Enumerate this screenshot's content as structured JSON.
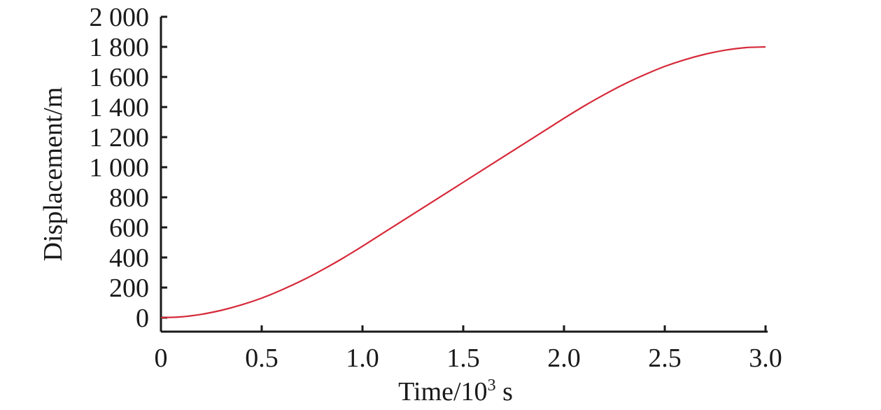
{
  "chart_data": {
    "type": "line",
    "title": "",
    "xlabel": "Time/10",
    "xlabel_sup": "3",
    "xlabel_unit": " s",
    "ylabel": "Displacement/m",
    "xlim": [
      0,
      3.0
    ],
    "ylim": [
      -40,
      2000
    ],
    "x_ticks": [
      "0",
      "0.5",
      "1.0",
      "1.5",
      "2.0",
      "2.5",
      "3.0"
    ],
    "x_tick_values": [
      0,
      0.5,
      1.0,
      1.5,
      2.0,
      2.5,
      3.0
    ],
    "y_ticks": [
      "0",
      "200",
      "400",
      "600",
      "800",
      "1 000",
      "1 200",
      "1 400",
      "1 600",
      "1 800",
      "2 000"
    ],
    "y_tick_values": [
      0,
      200,
      400,
      600,
      800,
      1000,
      1200,
      1400,
      1600,
      1800,
      2000
    ],
    "grid": false,
    "legend": "none",
    "series": [
      {
        "color": "#d62a3a",
        "x": [
          0,
          0.1,
          0.2,
          0.3,
          0.4,
          0.5,
          0.6,
          0.7,
          0.8,
          0.9,
          1.0,
          1.1,
          1.2,
          1.3,
          1.4,
          1.5,
          1.6,
          1.7,
          1.8,
          1.9,
          2.0,
          2.1,
          2.2,
          2.3,
          2.4,
          2.5,
          2.6,
          2.7,
          2.8,
          2.9,
          3.0
        ],
        "y": [
          0,
          5,
          22,
          49,
          85,
          130,
          185,
          247,
          317,
          393,
          475,
          560,
          645,
          730,
          815,
          900,
          985,
          1070,
          1155,
          1240,
          1325,
          1407,
          1483,
          1553,
          1615,
          1670,
          1715,
          1751,
          1778,
          1795,
          1800
        ]
      }
    ]
  }
}
